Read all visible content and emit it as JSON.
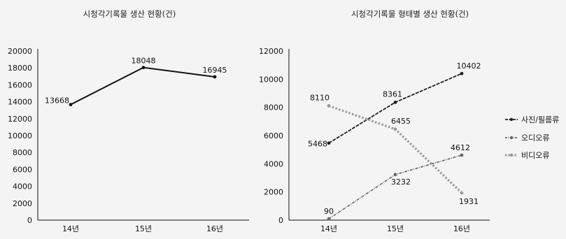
{
  "chart_data": [
    {
      "type": "line",
      "title": "시청각기록물 생산 현황(건)",
      "categories": [
        "14년",
        "15년",
        "16년"
      ],
      "series": [
        {
          "values": [
            13668,
            18048,
            16945
          ],
          "color": "#111111"
        }
      ],
      "ylim": [
        0,
        20000
      ],
      "yticks": [
        "0",
        "2000",
        "4000",
        "6000",
        "8000",
        "10000",
        "12000",
        "14000",
        "16000",
        "18000",
        "20000"
      ],
      "xlabel": "",
      "ylabel": "",
      "grid": false,
      "legend": "none"
    },
    {
      "type": "line",
      "title": "시청각기록물 형태별 생산 현황(건)",
      "categories": [
        "14년",
        "15년",
        "16년"
      ],
      "series": [
        {
          "name": "사진/필름류",
          "values": [
            5468,
            8361,
            10402
          ],
          "color": "#222222",
          "style": "dashed"
        },
        {
          "name": "오디오류",
          "values": [
            90,
            3232,
            4612
          ],
          "color": "#666666",
          "style": "dashdot"
        },
        {
          "name": "비디오류",
          "values": [
            8110,
            6455,
            1931
          ],
          "color": "#9a9a9a",
          "style": "dotted"
        }
      ],
      "ylim": [
        0,
        12000
      ],
      "yticks": [
        "0",
        "2000",
        "4000",
        "6000",
        "8000",
        "10000",
        "12000"
      ],
      "xlabel": "",
      "ylabel": "",
      "grid": false,
      "legend": "right"
    }
  ]
}
